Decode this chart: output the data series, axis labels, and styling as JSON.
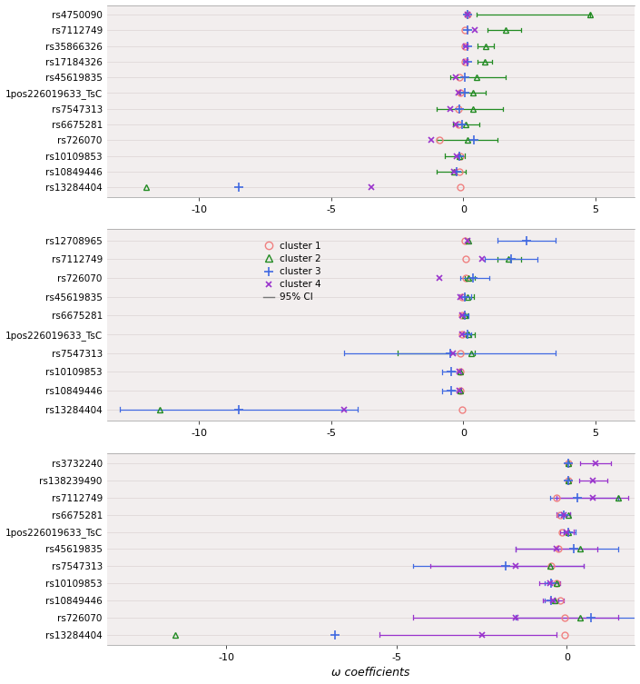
{
  "panel1": {
    "snps": [
      "rs4750090",
      "rs7112749",
      "rs35866326",
      "rs17184326",
      "rs45619835",
      "1pos226019633_TsC",
      "rs7547313",
      "rs6675281",
      "rs726070",
      "rs10109853",
      "rs10849446",
      "rs13284404"
    ],
    "c1": {
      "vals": [
        0.15,
        0.05,
        0.05,
        0.05,
        -0.15,
        -0.1,
        -0.2,
        -0.2,
        -0.9,
        -0.1,
        -0.15,
        -0.1
      ],
      "lo": [
        0.15,
        0.05,
        0.05,
        0.05,
        -0.15,
        -0.1,
        -0.2,
        -0.2,
        -0.9,
        -0.1,
        -0.15,
        -0.1
      ],
      "hi": [
        0.15,
        0.05,
        0.05,
        0.05,
        -0.15,
        -0.1,
        -0.2,
        -0.2,
        -0.9,
        -0.1,
        -0.15,
        -0.1
      ]
    },
    "c2": {
      "vals": [
        4.8,
        1.6,
        0.85,
        0.8,
        0.5,
        0.35,
        0.35,
        0.1,
        0.15,
        -0.15,
        -0.35,
        -12.0
      ],
      "lo": [
        0.5,
        0.9,
        0.55,
        0.55,
        -0.5,
        -0.15,
        -1.0,
        -0.4,
        -1.0,
        -0.7,
        -1.0,
        -12.0
      ],
      "hi": [
        4.8,
        2.2,
        1.15,
        1.1,
        1.6,
        0.85,
        1.5,
        0.6,
        1.3,
        0.05,
        0.1,
        -12.0
      ]
    },
    "c3": {
      "vals": [
        0.15,
        0.15,
        0.15,
        0.15,
        0.05,
        0.05,
        -0.15,
        -0.05,
        0.4,
        -0.15,
        -0.25,
        -8.5
      ],
      "lo": [
        0.15,
        0.15,
        0.15,
        0.15,
        0.05,
        0.05,
        -0.15,
        -0.05,
        0.4,
        -0.15,
        -0.25,
        -8.5
      ],
      "hi": [
        0.15,
        0.15,
        0.15,
        0.15,
        0.05,
        0.05,
        -0.15,
        -0.05,
        0.4,
        -0.15,
        -0.25,
        -8.5
      ]
    },
    "c4": {
      "vals": [
        0.15,
        0.45,
        0.1,
        0.1,
        -0.3,
        -0.2,
        -0.5,
        -0.3,
        -1.2,
        -0.25,
        -0.35,
        -3.5
      ],
      "lo": [
        0.15,
        0.45,
        0.1,
        0.1,
        -0.3,
        -0.2,
        -0.5,
        -0.3,
        -1.2,
        -0.25,
        -0.35,
        -3.5
      ],
      "hi": [
        0.15,
        0.45,
        0.1,
        0.1,
        -0.3,
        -0.2,
        -0.5,
        -0.3,
        -1.2,
        -0.25,
        -0.35,
        -3.5
      ]
    },
    "xlim": [
      -13.5,
      6.5
    ],
    "xticks": [
      -10,
      -5,
      0,
      5
    ]
  },
  "panel2": {
    "snps": [
      "rs12708965",
      "rs7112749",
      "rs726070",
      "rs45619835",
      "rs6675281",
      "1pos226019633_TsC",
      "rs7547313",
      "rs10109853",
      "rs10849446",
      "rs13284404"
    ],
    "c1": {
      "vals": [
        0.05,
        0.1,
        0.1,
        -0.05,
        -0.05,
        -0.05,
        -0.1,
        -0.1,
        -0.1,
        -0.05
      ],
      "lo": [
        0.05,
        0.1,
        0.1,
        -0.05,
        -0.05,
        -0.05,
        -0.1,
        -0.1,
        -0.1,
        -0.05
      ],
      "hi": [
        0.05,
        0.1,
        0.1,
        -0.05,
        -0.05,
        -0.05,
        -0.1,
        -0.1,
        -0.1,
        -0.05
      ]
    },
    "c2": {
      "vals": [
        0.2,
        1.7,
        0.2,
        0.15,
        0.05,
        0.2,
        0.3,
        -0.1,
        -0.1,
        -11.5
      ],
      "lo": [
        0.2,
        1.3,
        0.05,
        0.05,
        -0.1,
        0.1,
        -2.5,
        -0.1,
        -0.1,
        -11.5
      ],
      "hi": [
        0.2,
        2.2,
        0.45,
        0.4,
        0.15,
        0.45,
        0.45,
        -0.1,
        -0.1,
        -11.5
      ]
    },
    "c3": {
      "vals": [
        2.4,
        1.8,
        0.35,
        0.05,
        0.05,
        0.15,
        -0.5,
        -0.45,
        -0.45,
        -8.5
      ],
      "lo": [
        1.3,
        0.8,
        -0.1,
        -0.15,
        -0.1,
        0.0,
        -4.5,
        -0.8,
        -0.8,
        -13.0
      ],
      "hi": [
        3.5,
        2.8,
        1.0,
        0.3,
        0.2,
        0.3,
        3.5,
        -0.1,
        -0.1,
        -4.0
      ]
    },
    "c4": {
      "vals": [
        0.15,
        0.7,
        -0.9,
        -0.1,
        -0.05,
        -0.05,
        -0.4,
        -0.15,
        -0.15,
        -4.5
      ],
      "lo": [
        0.15,
        0.7,
        -0.9,
        -0.1,
        -0.05,
        -0.05,
        -0.4,
        -0.15,
        -0.15,
        -4.5
      ],
      "hi": [
        0.15,
        0.7,
        -0.9,
        -0.1,
        -0.05,
        -0.05,
        -0.4,
        -0.15,
        -0.15,
        -4.5
      ]
    },
    "xlim": [
      -13.5,
      6.5
    ],
    "xticks": [
      -10,
      -5,
      0,
      5
    ]
  },
  "panel3": {
    "snps": [
      "rs3732240",
      "rs138239490",
      "rs7112749",
      "rs6675281",
      "1pos226019633_TsC",
      "rs45619835",
      "rs7547313",
      "rs10109853",
      "rs10849446",
      "rs726070",
      "rs13284404"
    ],
    "c1": {
      "vals": [
        0.05,
        0.05,
        -0.3,
        -0.2,
        -0.15,
        -0.25,
        -0.45,
        -0.3,
        -0.2,
        -0.05,
        -0.05
      ],
      "lo": [
        0.05,
        0.05,
        -0.3,
        -0.2,
        -0.15,
        -0.25,
        -0.45,
        -0.3,
        -0.2,
        -0.05,
        -0.05
      ],
      "hi": [
        0.05,
        0.05,
        -0.3,
        -0.2,
        -0.15,
        -0.25,
        -0.45,
        -0.3,
        -0.2,
        -0.05,
        -0.05
      ]
    },
    "c2": {
      "vals": [
        0.05,
        0.05,
        1.5,
        0.05,
        0.05,
        0.4,
        -0.5,
        -0.3,
        -0.35,
        0.4,
        -11.5
      ],
      "lo": [
        0.05,
        0.05,
        1.5,
        0.05,
        0.05,
        0.4,
        -0.5,
        -0.3,
        -0.35,
        0.4,
        -11.5
      ],
      "hi": [
        0.05,
        0.05,
        1.5,
        0.05,
        0.05,
        0.4,
        -0.5,
        -0.3,
        -0.35,
        0.4,
        -11.5
      ]
    },
    "c3": {
      "vals": [
        0.05,
        0.05,
        0.3,
        -0.1,
        0.05,
        0.2,
        -1.8,
        -0.45,
        -0.45,
        0.7,
        -6.8
      ],
      "lo": [
        0.05,
        0.05,
        -0.5,
        -0.25,
        -0.1,
        -1.5,
        -4.5,
        -0.65,
        -0.65,
        -1.5,
        -6.8
      ],
      "hi": [
        0.05,
        0.05,
        1.5,
        0.1,
        0.25,
        1.5,
        0.5,
        -0.25,
        -0.25,
        3.0,
        -6.8
      ]
    },
    "c4": {
      "vals": [
        0.85,
        0.75,
        0.75,
        -0.1,
        0.0,
        -0.3,
        -1.5,
        -0.5,
        -0.4,
        -1.5,
        -2.5
      ],
      "lo": [
        0.4,
        0.35,
        -0.3,
        -0.3,
        -0.2,
        -1.5,
        -4.0,
        -0.8,
        -0.7,
        -4.5,
        -5.5
      ],
      "hi": [
        1.3,
        1.2,
        1.8,
        0.1,
        0.2,
        0.9,
        0.5,
        -0.2,
        -0.1,
        1.5,
        -0.3
      ]
    },
    "xlim": [
      -13.5,
      2.0
    ],
    "xticks": [
      -10,
      -5,
      0
    ]
  },
  "c1_color": "#F08080",
  "c2_color": "#228B22",
  "c3_color": "#4169E1",
  "c4_color": "#9932CC",
  "bg_color": "#F2EEEE",
  "grid_color": "#E0D8D8"
}
